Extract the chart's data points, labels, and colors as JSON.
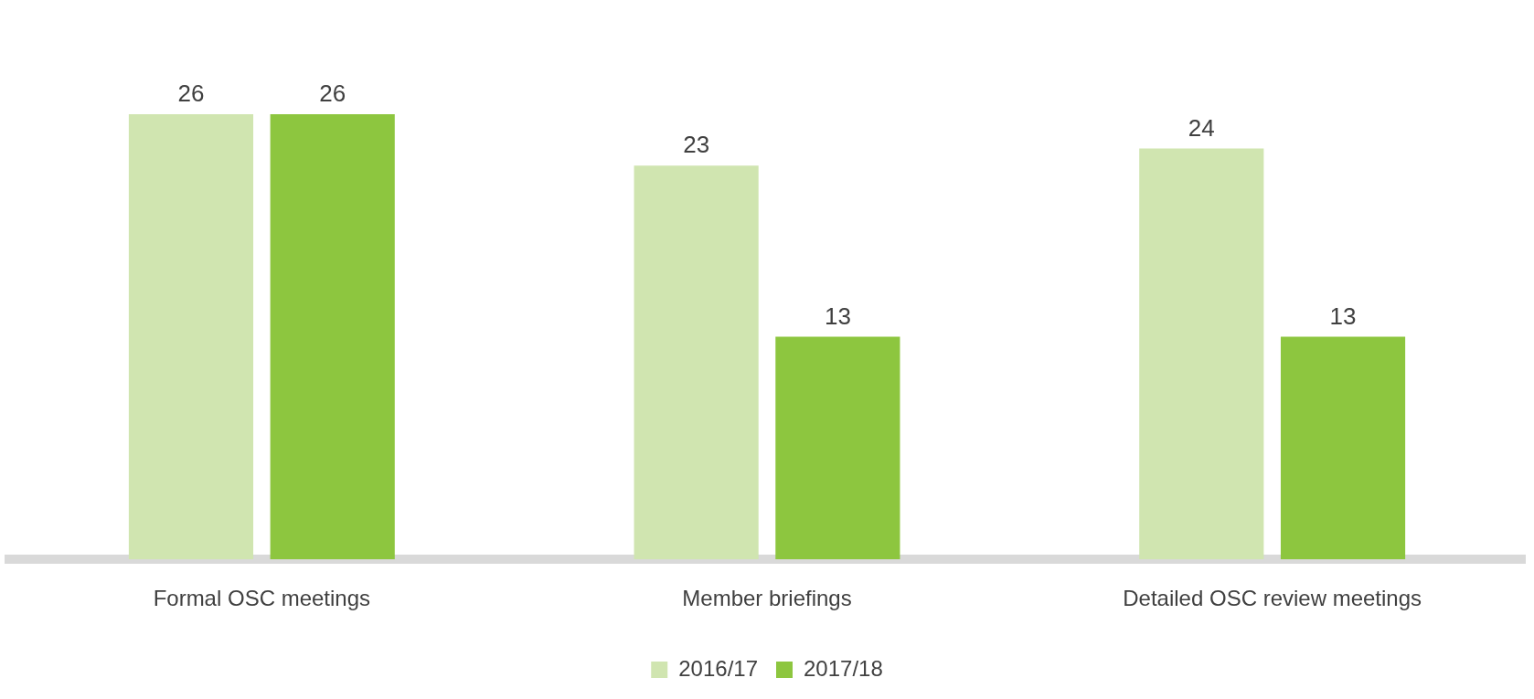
{
  "chart_data": {
    "type": "bar",
    "categories": [
      "Formal OSC meetings",
      "Member briefings",
      "Detailed OSC review meetings"
    ],
    "series": [
      {
        "name": "2016/17",
        "color": "#d0e5b0",
        "values": [
          26,
          23,
          24
        ]
      },
      {
        "name": "2017/18",
        "color": "#8dc63f",
        "values": [
          26,
          13,
          13
        ]
      }
    ],
    "data_labels": true,
    "legend": "bottom",
    "grid": false
  }
}
